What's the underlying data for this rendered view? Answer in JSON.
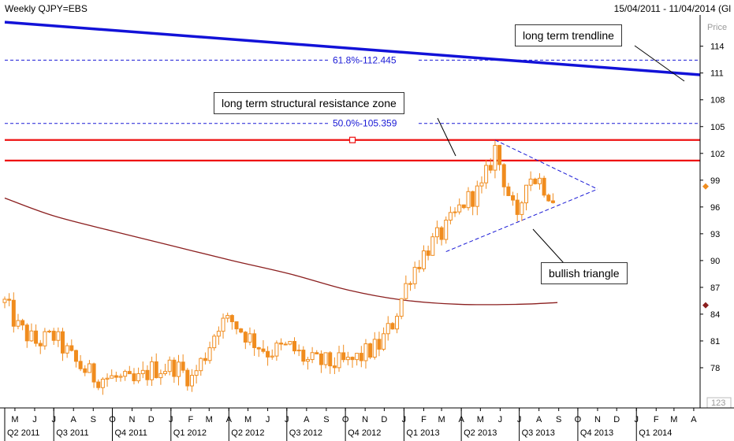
{
  "header": {
    "title": "Weekly QJPY=EBS",
    "range": "15/04/2011 - 11/04/2014 (Gl"
  },
  "annotations": {
    "trendline": "long term trendline",
    "resistance": "long term structural resistance zone",
    "triangle": "bullish triangle"
  },
  "colors": {
    "candle": "#f08c1e",
    "trendline": "#1212d8",
    "resistance": "#ee1111",
    "fib": "#1a1ad6",
    "ma": "#8b1f1f",
    "axis": "#000000"
  },
  "chart_data": {
    "type": "candlestick",
    "ylabel": "Price",
    "yticks": [
      "114",
      "111",
      "108",
      "105",
      "102",
      "99",
      "96",
      "93",
      "90",
      "87",
      "84",
      "81",
      "78"
    ],
    "ylim": [
      73.5,
      117.5
    ],
    "x_start": "2011-04-15",
    "x_end": "2014-04-11",
    "month_ticks": [
      "M",
      "J",
      "J",
      "A",
      "S",
      "O",
      "N",
      "D",
      "J",
      "F",
      "M",
      "A",
      "M",
      "J",
      "J",
      "A",
      "S",
      "O",
      "N",
      "D",
      "J",
      "F",
      "M",
      "A",
      "M",
      "J",
      "J",
      "A",
      "S",
      "O",
      "N",
      "D",
      "J",
      "F",
      "M",
      "A"
    ],
    "quarters": [
      "Q2 2011",
      "Q3 2011",
      "Q4 2011",
      "Q1 2012",
      "Q2 2012",
      "Q3 2012",
      "Q4 2012",
      "Q1 2013",
      "Q2 2013",
      "Q3 2013",
      "Q4 2013",
      "Q1 2014"
    ],
    "close_anchors": [
      [
        "2011-04-15",
        85.3
      ],
      [
        "2011-05-06",
        82.5
      ],
      [
        "2011-06-03",
        80.8
      ],
      [
        "2011-07-01",
        81.5
      ],
      [
        "2011-08-05",
        78.5
      ],
      [
        "2011-09-02",
        77.0
      ],
      [
        "2011-10-07",
        76.8
      ],
      [
        "2011-11-04",
        76.2
      ],
      [
        "2011-12-02",
        77.8
      ],
      [
        "2012-01-06",
        78.2
      ],
      [
        "2012-02-03",
        76.8
      ],
      [
        "2012-02-24",
        79.5
      ],
      [
        "2012-03-16",
        83.0
      ],
      [
        "2012-04-06",
        83.2
      ],
      [
        "2012-05-04",
        81.3
      ],
      [
        "2012-06-01",
        79.8
      ],
      [
        "2012-07-06",
        80.3
      ],
      [
        "2012-08-03",
        78.7
      ],
      [
        "2012-09-07",
        78.5
      ],
      [
        "2012-10-05",
        78.5
      ],
      [
        "2012-10-26",
        79.3
      ],
      [
        "2012-11-23",
        80.5
      ],
      [
        "2012-12-14",
        83.0
      ],
      [
        "2013-01-11",
        88.5
      ],
      [
        "2013-02-08",
        91.5
      ],
      [
        "2013-03-08",
        93.5
      ],
      [
        "2013-04-05",
        96.5
      ],
      [
        "2013-05-03",
        98.0
      ],
      [
        "2013-05-24",
        102.5
      ],
      [
        "2013-06-14",
        97.5
      ],
      [
        "2013-06-28",
        94.0
      ],
      [
        "2013-07-12",
        99.5
      ],
      [
        "2013-08-02",
        99.0
      ],
      [
        "2013-08-23",
        97.0
      ]
    ],
    "moving_average": [
      [
        "2011-04-15",
        97.0
      ],
      [
        "2011-07-01",
        95.0
      ],
      [
        "2011-10-07",
        93.2
      ],
      [
        "2012-01-06",
        91.6
      ],
      [
        "2012-04-06",
        90.0
      ],
      [
        "2012-07-06",
        88.5
      ],
      [
        "2012-10-05",
        86.7
      ],
      [
        "2012-12-28",
        85.6
      ],
      [
        "2013-03-29",
        85.1
      ],
      [
        "2013-06-28",
        85.1
      ],
      [
        "2013-08-30",
        85.3
      ]
    ],
    "trendline": [
      [
        "2011-04-15",
        116.7
      ],
      [
        "2014-04-11",
        110.8
      ]
    ],
    "fib_levels": [
      {
        "label": "61.8%-112.445",
        "value": 112.445
      },
      {
        "label": "50.0%-105.359",
        "value": 105.359
      }
    ],
    "resistance_zone": [
      103.5,
      101.2
    ],
    "triangle": {
      "upper": [
        [
          "2013-05-24",
          103.5
        ],
        [
          "2013-11-01",
          98.0
        ]
      ],
      "lower": [
        [
          "2013-03-08",
          91.0
        ],
        [
          "2013-11-01",
          98.0
        ]
      ]
    },
    "right_markers": [
      {
        "value": 98.3,
        "color": "#f08c1e"
      },
      {
        "value": 85.0,
        "color": "#8b1f1f"
      }
    ],
    "last_label": "123",
    "grid": false
  }
}
